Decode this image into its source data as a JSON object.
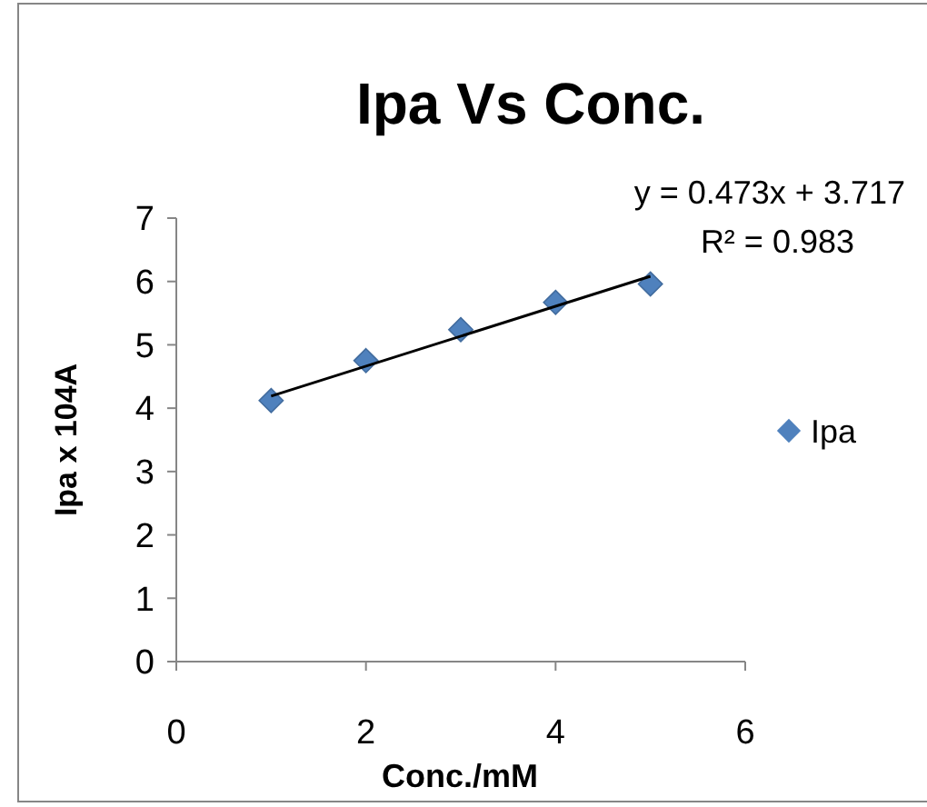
{
  "chart_data": {
    "type": "scatter",
    "title": "Ipa Vs Conc.",
    "xlabel": "Conc./mM",
    "ylabel": "Ipa x 104A",
    "x": [
      1,
      2,
      3,
      4,
      5
    ],
    "series": [
      {
        "name": "Ipa",
        "color": "#4f81bd",
        "values": [
          4.12,
          4.75,
          5.24,
          5.67,
          5.96
        ],
        "marker": "diamond"
      },
      {
        "type": "line",
        "x": [
          1,
          5
        ],
        "values": [
          4.19,
          6.082
        ],
        "color": "#000000",
        "marker": "none"
      }
    ],
    "annotations": [
      "y = 0.473x + 3.717",
      "R² = 0.983"
    ],
    "xlim": [
      0,
      6
    ],
    "xticks": [
      0,
      2,
      4,
      6
    ],
    "ylim": [
      0,
      7
    ],
    "yticks": [
      0,
      1,
      2,
      3,
      4,
      5,
      6,
      7
    ],
    "grid": false,
    "legend": "right"
  }
}
